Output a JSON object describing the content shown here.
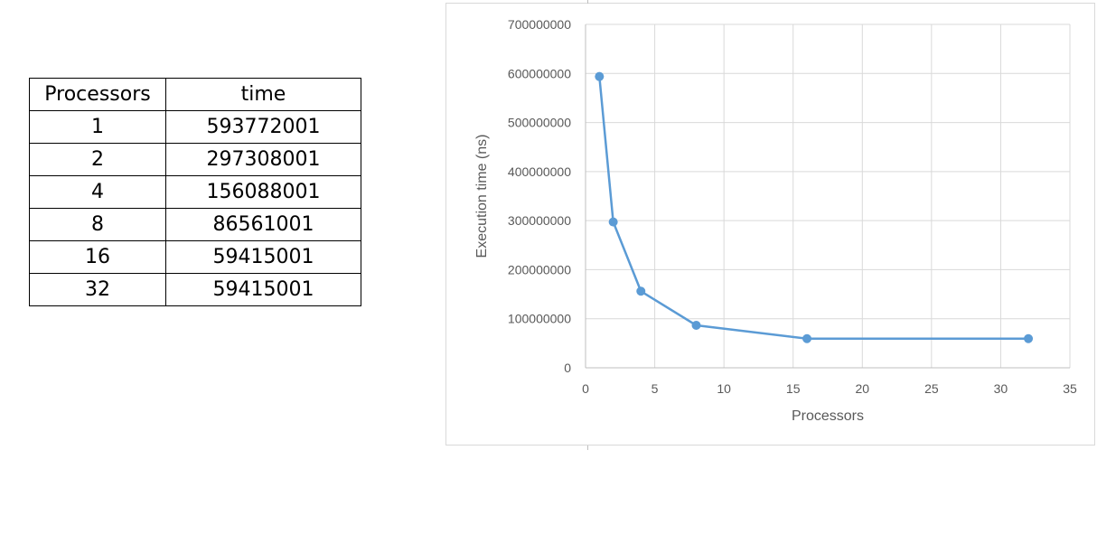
{
  "table": {
    "headers": [
      "Processors",
      "time"
    ],
    "rows": [
      [
        "1",
        "593772001"
      ],
      [
        "2",
        "297308001"
      ],
      [
        "4",
        "156088001"
      ],
      [
        "8",
        "86561001"
      ],
      [
        "16",
        "59415001"
      ],
      [
        "32",
        "59415001"
      ]
    ]
  },
  "chart_data": {
    "type": "scatter",
    "title": "",
    "xlabel": "Processors",
    "ylabel": "Execution time (ns)",
    "xlim": [
      0,
      35
    ],
    "ylim": [
      0,
      700000000
    ],
    "xticks": [
      0,
      5,
      10,
      15,
      20,
      25,
      30,
      35
    ],
    "yticks": [
      0,
      100000000,
      200000000,
      300000000,
      400000000,
      500000000,
      600000000,
      700000000
    ],
    "grid": true,
    "lines": true,
    "markers": true,
    "legend": "none",
    "series": [
      {
        "color": "#5b9bd5",
        "x": [
          1,
          2,
          4,
          8,
          16,
          32
        ],
        "y": [
          593772001,
          297308001,
          156088001,
          86561001,
          59415001,
          59415001
        ]
      }
    ]
  }
}
